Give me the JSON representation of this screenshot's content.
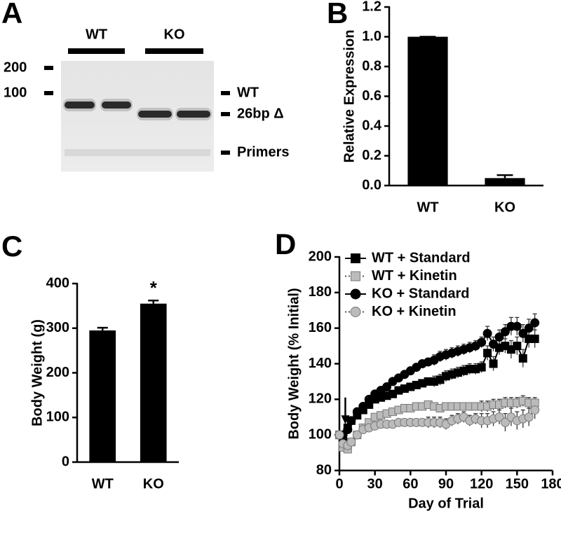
{
  "chart_data": [
    {
      "type": "gel",
      "panel_label": "A",
      "lane_groups": [
        "WT",
        "KO"
      ],
      "ladder_labels": [
        200,
        100
      ],
      "band_labels": [
        "WT",
        "26bp Δ",
        "Primers"
      ]
    },
    {
      "type": "bar",
      "panel_label": "B",
      "ylabel": "Relative Expression",
      "categories": [
        "WT",
        "KO"
      ],
      "values": [
        1.0,
        0.05
      ],
      "errors": [
        0,
        0.02
      ],
      "color": "#000000",
      "ylim": [
        0,
        1.2
      ],
      "yticks": [
        {
          "value": 0,
          "label": "0.0"
        },
        0.2,
        0.4,
        0.6,
        0.8,
        {
          "value": 1,
          "label": "1.0"
        },
        1.2
      ]
    },
    {
      "type": "bar",
      "panel_label": "C",
      "ylabel": "Body Weight (g)",
      "categories": [
        "WT",
        "KO"
      ],
      "values": [
        295,
        355
      ],
      "errors": [
        6,
        7
      ],
      "color": "#000000",
      "annotation": "*",
      "ylim": [
        0,
        400
      ],
      "yticks": [
        0,
        100,
        200,
        300,
        400
      ]
    },
    {
      "type": "line",
      "panel_label": "D",
      "xlabel": "Day of Trial",
      "ylabel": "Body Weight (% Initial)",
      "legend": "upper left",
      "xlim": [
        0,
        180
      ],
      "xticks": [
        0,
        30,
        60,
        90,
        120,
        150,
        180
      ],
      "ylim": [
        80,
        200
      ],
      "yticks": [
        80,
        100,
        120,
        140,
        160,
        180,
        200
      ],
      "x": [
        0,
        3,
        7,
        10,
        15,
        20,
        25,
        30,
        35,
        40,
        45,
        50,
        55,
        60,
        65,
        70,
        75,
        80,
        85,
        90,
        95,
        100,
        105,
        110,
        115,
        120,
        125,
        130,
        135,
        140,
        145,
        150,
        155,
        160,
        165
      ],
      "series": [
        {
          "name": "WT + Standard",
          "color": "#000000",
          "marker": "square",
          "line_style": "solid",
          "values": [
            100,
            99,
            104,
            108,
            111,
            114,
            117,
            120,
            121,
            122,
            123,
            125,
            126,
            127,
            128,
            129,
            130,
            130,
            131,
            133,
            134,
            135,
            136,
            137,
            137,
            138,
            146,
            140,
            149,
            150,
            148,
            150,
            143,
            154,
            154
          ],
          "errors": [
            2,
            2,
            2,
            2,
            2,
            2,
            2,
            2,
            2,
            2,
            2,
            2,
            2,
            2,
            2,
            2,
            2,
            3,
            3,
            3,
            3,
            3,
            3,
            3,
            3,
            3,
            4,
            4,
            4,
            4,
            5,
            5,
            5,
            5,
            5
          ]
        },
        {
          "name": "WT + Kinetin",
          "color": "#bbbbbb",
          "marker": "square",
          "line_style": "dotted",
          "values": [
            100,
            93,
            92,
            96,
            100,
            104,
            107,
            110,
            111,
            112,
            113,
            114,
            115,
            115,
            116,
            116,
            117,
            116,
            115,
            116,
            116,
            116,
            116,
            116,
            116,
            116,
            116,
            117,
            117,
            118,
            118,
            118,
            119,
            118,
            118
          ],
          "errors": [
            2,
            2,
            2,
            2,
            2,
            2,
            2,
            2,
            2,
            2,
            2,
            2,
            2,
            2,
            2,
            2,
            2,
            2,
            2,
            2,
            2,
            2,
            2,
            2,
            2,
            3,
            3,
            3,
            3,
            3,
            3,
            3,
            3,
            3,
            3
          ]
        },
        {
          "name": "KO + Standard",
          "color": "#000000",
          "marker": "circle",
          "line_style": "solid",
          "values": [
            100,
            100,
            103,
            108,
            113,
            116,
            120,
            123,
            125,
            127,
            130,
            132,
            134,
            136,
            138,
            140,
            141,
            142,
            144,
            145,
            146,
            147,
            148,
            149,
            150,
            152,
            157,
            151,
            155,
            158,
            161,
            161,
            157,
            160,
            163
          ],
          "errors": [
            2,
            2,
            2,
            2,
            2,
            2,
            2,
            2,
            2,
            2,
            2,
            2,
            2,
            2,
            2,
            2,
            2,
            3,
            3,
            3,
            3,
            3,
            3,
            3,
            3,
            3,
            4,
            4,
            4,
            4,
            5,
            5,
            5,
            5,
            5
          ]
        },
        {
          "name": "KO + Kinetin",
          "color": "#bbbbbb",
          "marker": "circle",
          "line_style": "dotted",
          "values": [
            100,
            95,
            94,
            96,
            100,
            103,
            104,
            105,
            106,
            106,
            106,
            107,
            107,
            107,
            107,
            107,
            107,
            107,
            107,
            106,
            108,
            109,
            110,
            108,
            109,
            108,
            108,
            109,
            110,
            107,
            110,
            108,
            109,
            110,
            114
          ],
          "errors": [
            2,
            2,
            2,
            2,
            2,
            2,
            2,
            2,
            2,
            2,
            2,
            2,
            2,
            2,
            2,
            2,
            3,
            3,
            3,
            3,
            3,
            3,
            3,
            3,
            3,
            4,
            4,
            4,
            4,
            5,
            5,
            5,
            5,
            5,
            5
          ]
        }
      ]
    }
  ]
}
